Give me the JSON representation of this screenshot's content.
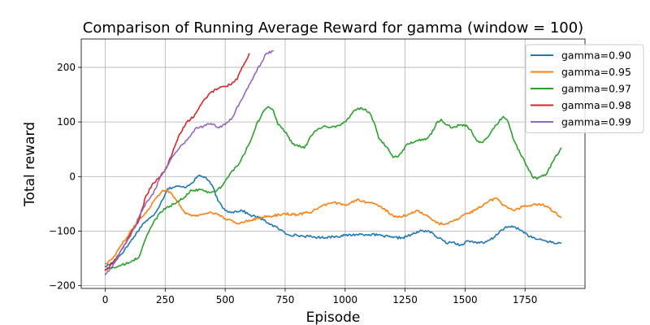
{
  "chart_data": {
    "type": "line",
    "title": "Comparison of Running Average Reward for gamma (window = 100)",
    "xlabel": "Episode",
    "ylabel": "Total reward",
    "xlim": [
      -100,
      2000
    ],
    "ylim": [
      -205,
      252
    ],
    "xticks": [
      0,
      250,
      500,
      750,
      1000,
      1250,
      1500,
      1750
    ],
    "yticks": [
      -200,
      -100,
      0,
      100,
      200
    ],
    "grid": true,
    "legend_position": "top-right",
    "series": [
      {
        "name": "gamma=0.90",
        "color": "#1f77b4",
        "points": [
          [
            0,
            -165
          ],
          [
            40,
            -155
          ],
          [
            80,
            -135
          ],
          [
            120,
            -110
          ],
          [
            160,
            -85
          ],
          [
            200,
            -72
          ],
          [
            230,
            -50
          ],
          [
            260,
            -22
          ],
          [
            300,
            -18
          ],
          [
            330,
            -20
          ],
          [
            360,
            -12
          ],
          [
            390,
            2
          ],
          [
            420,
            -2
          ],
          [
            450,
            -20
          ],
          [
            470,
            -45
          ],
          [
            500,
            -62
          ],
          [
            530,
            -65
          ],
          [
            570,
            -62
          ],
          [
            600,
            -70
          ],
          [
            640,
            -75
          ],
          [
            680,
            -85
          ],
          [
            720,
            -95
          ],
          [
            760,
            -106
          ],
          [
            800,
            -108
          ],
          [
            850,
            -110
          ],
          [
            900,
            -112
          ],
          [
            950,
            -110
          ],
          [
            1000,
            -108
          ],
          [
            1050,
            -106
          ],
          [
            1100,
            -106
          ],
          [
            1150,
            -108
          ],
          [
            1200,
            -112
          ],
          [
            1240,
            -112
          ],
          [
            1280,
            -106
          ],
          [
            1320,
            -99
          ],
          [
            1350,
            -100
          ],
          [
            1380,
            -110
          ],
          [
            1410,
            -118
          ],
          [
            1430,
            -122
          ],
          [
            1450,
            -120
          ],
          [
            1480,
            -126
          ],
          [
            1510,
            -118
          ],
          [
            1540,
            -120
          ],
          [
            1580,
            -122
          ],
          [
            1620,
            -112
          ],
          [
            1650,
            -98
          ],
          [
            1680,
            -92
          ],
          [
            1710,
            -93
          ],
          [
            1740,
            -100
          ],
          [
            1770,
            -110
          ],
          [
            1800,
            -115
          ],
          [
            1840,
            -118
          ],
          [
            1870,
            -122
          ],
          [
            1900,
            -122
          ]
        ]
      },
      {
        "name": "gamma=0.95",
        "color": "#ff7f0e",
        "points": [
          [
            0,
            -160
          ],
          [
            30,
            -150
          ],
          [
            60,
            -130
          ],
          [
            100,
            -105
          ],
          [
            140,
            -80
          ],
          [
            180,
            -60
          ],
          [
            210,
            -40
          ],
          [
            240,
            -25
          ],
          [
            270,
            -28
          ],
          [
            300,
            -45
          ],
          [
            330,
            -65
          ],
          [
            360,
            -72
          ],
          [
            400,
            -70
          ],
          [
            440,
            -65
          ],
          [
            470,
            -70
          ],
          [
            500,
            -77
          ],
          [
            550,
            -86
          ],
          [
            600,
            -80
          ],
          [
            650,
            -75
          ],
          [
            700,
            -72
          ],
          [
            750,
            -68
          ],
          [
            800,
            -70
          ],
          [
            850,
            -66
          ],
          [
            900,
            -55
          ],
          [
            950,
            -48
          ],
          [
            1000,
            -52
          ],
          [
            1050,
            -42
          ],
          [
            1100,
            -48
          ],
          [
            1150,
            -55
          ],
          [
            1200,
            -72
          ],
          [
            1230,
            -74
          ],
          [
            1270,
            -68
          ],
          [
            1300,
            -62
          ],
          [
            1330,
            -70
          ],
          [
            1360,
            -78
          ],
          [
            1390,
            -86
          ],
          [
            1420,
            -87
          ],
          [
            1450,
            -82
          ],
          [
            1480,
            -75
          ],
          [
            1510,
            -68
          ],
          [
            1540,
            -62
          ],
          [
            1570,
            -55
          ],
          [
            1600,
            -45
          ],
          [
            1630,
            -40
          ],
          [
            1660,
            -52
          ],
          [
            1700,
            -62
          ],
          [
            1740,
            -55
          ],
          [
            1780,
            -52
          ],
          [
            1810,
            -50
          ],
          [
            1840,
            -55
          ],
          [
            1870,
            -65
          ],
          [
            1900,
            -75
          ]
        ]
      },
      {
        "name": "gamma=0.97",
        "color": "#2ca02c",
        "points": [
          [
            0,
            -170
          ],
          [
            50,
            -165
          ],
          [
            100,
            -158
          ],
          [
            140,
            -148
          ],
          [
            170,
            -112
          ],
          [
            200,
            -85
          ],
          [
            230,
            -65
          ],
          [
            260,
            -55
          ],
          [
            290,
            -50
          ],
          [
            330,
            -38
          ],
          [
            360,
            -25
          ],
          [
            400,
            -24
          ],
          [
            430,
            -28
          ],
          [
            460,
            -28
          ],
          [
            490,
            -16
          ],
          [
            520,
            5
          ],
          [
            560,
            25
          ],
          [
            600,
            60
          ],
          [
            630,
            95
          ],
          [
            660,
            120
          ],
          [
            680,
            128
          ],
          [
            700,
            122
          ],
          [
            720,
            95
          ],
          [
            740,
            88
          ],
          [
            760,
            75
          ],
          [
            780,
            60
          ],
          [
            800,
            58
          ],
          [
            830,
            52
          ],
          [
            860,
            75
          ],
          [
            890,
            88
          ],
          [
            920,
            92
          ],
          [
            960,
            90
          ],
          [
            1000,
            100
          ],
          [
            1040,
            122
          ],
          [
            1070,
            125
          ],
          [
            1100,
            118
          ],
          [
            1120,
            100
          ],
          [
            1140,
            70
          ],
          [
            1170,
            55
          ],
          [
            1200,
            35
          ],
          [
            1220,
            36
          ],
          [
            1260,
            60
          ],
          [
            1300,
            66
          ],
          [
            1340,
            70
          ],
          [
            1360,
            78
          ],
          [
            1380,
            98
          ],
          [
            1400,
            105
          ],
          [
            1420,
            95
          ],
          [
            1450,
            90
          ],
          [
            1480,
            95
          ],
          [
            1510,
            92
          ],
          [
            1530,
            80
          ],
          [
            1550,
            65
          ],
          [
            1570,
            62
          ],
          [
            1600,
            75
          ],
          [
            1630,
            95
          ],
          [
            1660,
            110
          ],
          [
            1680,
            100
          ],
          [
            1700,
            70
          ],
          [
            1730,
            42
          ],
          [
            1760,
            18
          ],
          [
            1780,
            0
          ],
          [
            1800,
            -5
          ],
          [
            1820,
            2
          ],
          [
            1840,
            5
          ],
          [
            1870,
            30
          ],
          [
            1900,
            52
          ]
        ]
      },
      {
        "name": "gamma=0.98",
        "color": "#d62728",
        "points": [
          [
            0,
            -172
          ],
          [
            30,
            -160
          ],
          [
            60,
            -140
          ],
          [
            100,
            -110
          ],
          [
            140,
            -80
          ],
          [
            170,
            -35
          ],
          [
            200,
            -12
          ],
          [
            230,
            0
          ],
          [
            260,
            20
          ],
          [
            290,
            55
          ],
          [
            310,
            78
          ],
          [
            340,
            100
          ],
          [
            370,
            110
          ],
          [
            400,
            132
          ],
          [
            430,
            150
          ],
          [
            460,
            160
          ],
          [
            490,
            165
          ],
          [
            520,
            168
          ],
          [
            550,
            178
          ],
          [
            570,
            200
          ],
          [
            600,
            225
          ]
        ]
      },
      {
        "name": "gamma=0.99",
        "color": "#9467bd",
        "points": [
          [
            0,
            -180
          ],
          [
            30,
            -165
          ],
          [
            60,
            -140
          ],
          [
            100,
            -112
          ],
          [
            140,
            -75
          ],
          [
            170,
            -48
          ],
          [
            200,
            -32
          ],
          [
            230,
            0
          ],
          [
            260,
            20
          ],
          [
            290,
            42
          ],
          [
            320,
            58
          ],
          [
            350,
            72
          ],
          [
            380,
            90
          ],
          [
            410,
            92
          ],
          [
            440,
            97
          ],
          [
            470,
            90
          ],
          [
            500,
            95
          ],
          [
            530,
            108
          ],
          [
            560,
            135
          ],
          [
            590,
            160
          ],
          [
            620,
            185
          ],
          [
            650,
            208
          ],
          [
            670,
            225
          ],
          [
            700,
            230
          ]
        ]
      }
    ]
  }
}
